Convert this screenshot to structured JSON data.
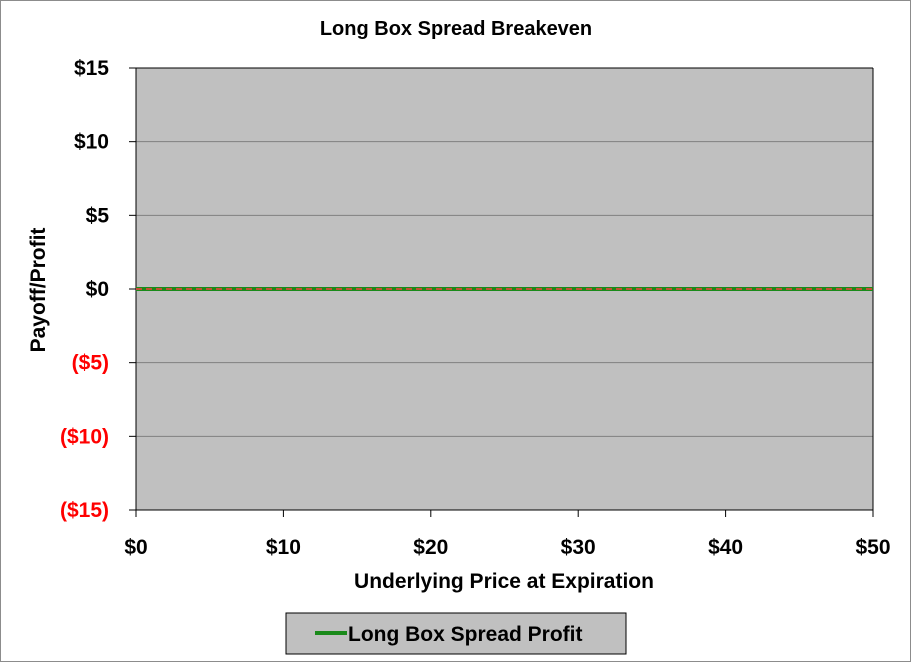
{
  "chart_data": {
    "type": "line",
    "title": "Long Box Spread Breakeven",
    "xlabel": "Underlying Price at Expiration",
    "ylabel": "Payoff/Profit",
    "xlim": [
      0,
      50
    ],
    "ylim": [
      -15,
      15
    ],
    "x_ticks": [
      {
        "value": 0,
        "label": "$0"
      },
      {
        "value": 10,
        "label": "$10"
      },
      {
        "value": 20,
        "label": "$20"
      },
      {
        "value": 30,
        "label": "$30"
      },
      {
        "value": 40,
        "label": "$40"
      },
      {
        "value": 50,
        "label": "$50"
      }
    ],
    "y_ticks": [
      {
        "value": 15,
        "label": "$15",
        "negative": false
      },
      {
        "value": 10,
        "label": "$10",
        "negative": false
      },
      {
        "value": 5,
        "label": "$5",
        "negative": false
      },
      {
        "value": 0,
        "label": "$0",
        "negative": false
      },
      {
        "value": -5,
        "label": "($5)",
        "negative": true
      },
      {
        "value": -10,
        "label": "($10)",
        "negative": true
      },
      {
        "value": -15,
        "label": "($15)",
        "negative": true
      }
    ],
    "grid": true,
    "legend_position": "bottom",
    "series": [
      {
        "name": "Long Box Spread Profit",
        "color": "#1a8a1a",
        "x": [
          0,
          10,
          20,
          30,
          40,
          50
        ],
        "y": [
          0,
          0,
          0,
          0,
          0,
          0
        ]
      }
    ],
    "annotations": [
      {
        "type": "breakeven-line",
        "y": 0,
        "color": "#ff3b3b",
        "style": "dashed"
      }
    ],
    "colors": {
      "plot_background": "#c0c0c0",
      "gridline": "#808080",
      "negative_tick": "#ff0000",
      "positive_tick": "#000000"
    }
  }
}
